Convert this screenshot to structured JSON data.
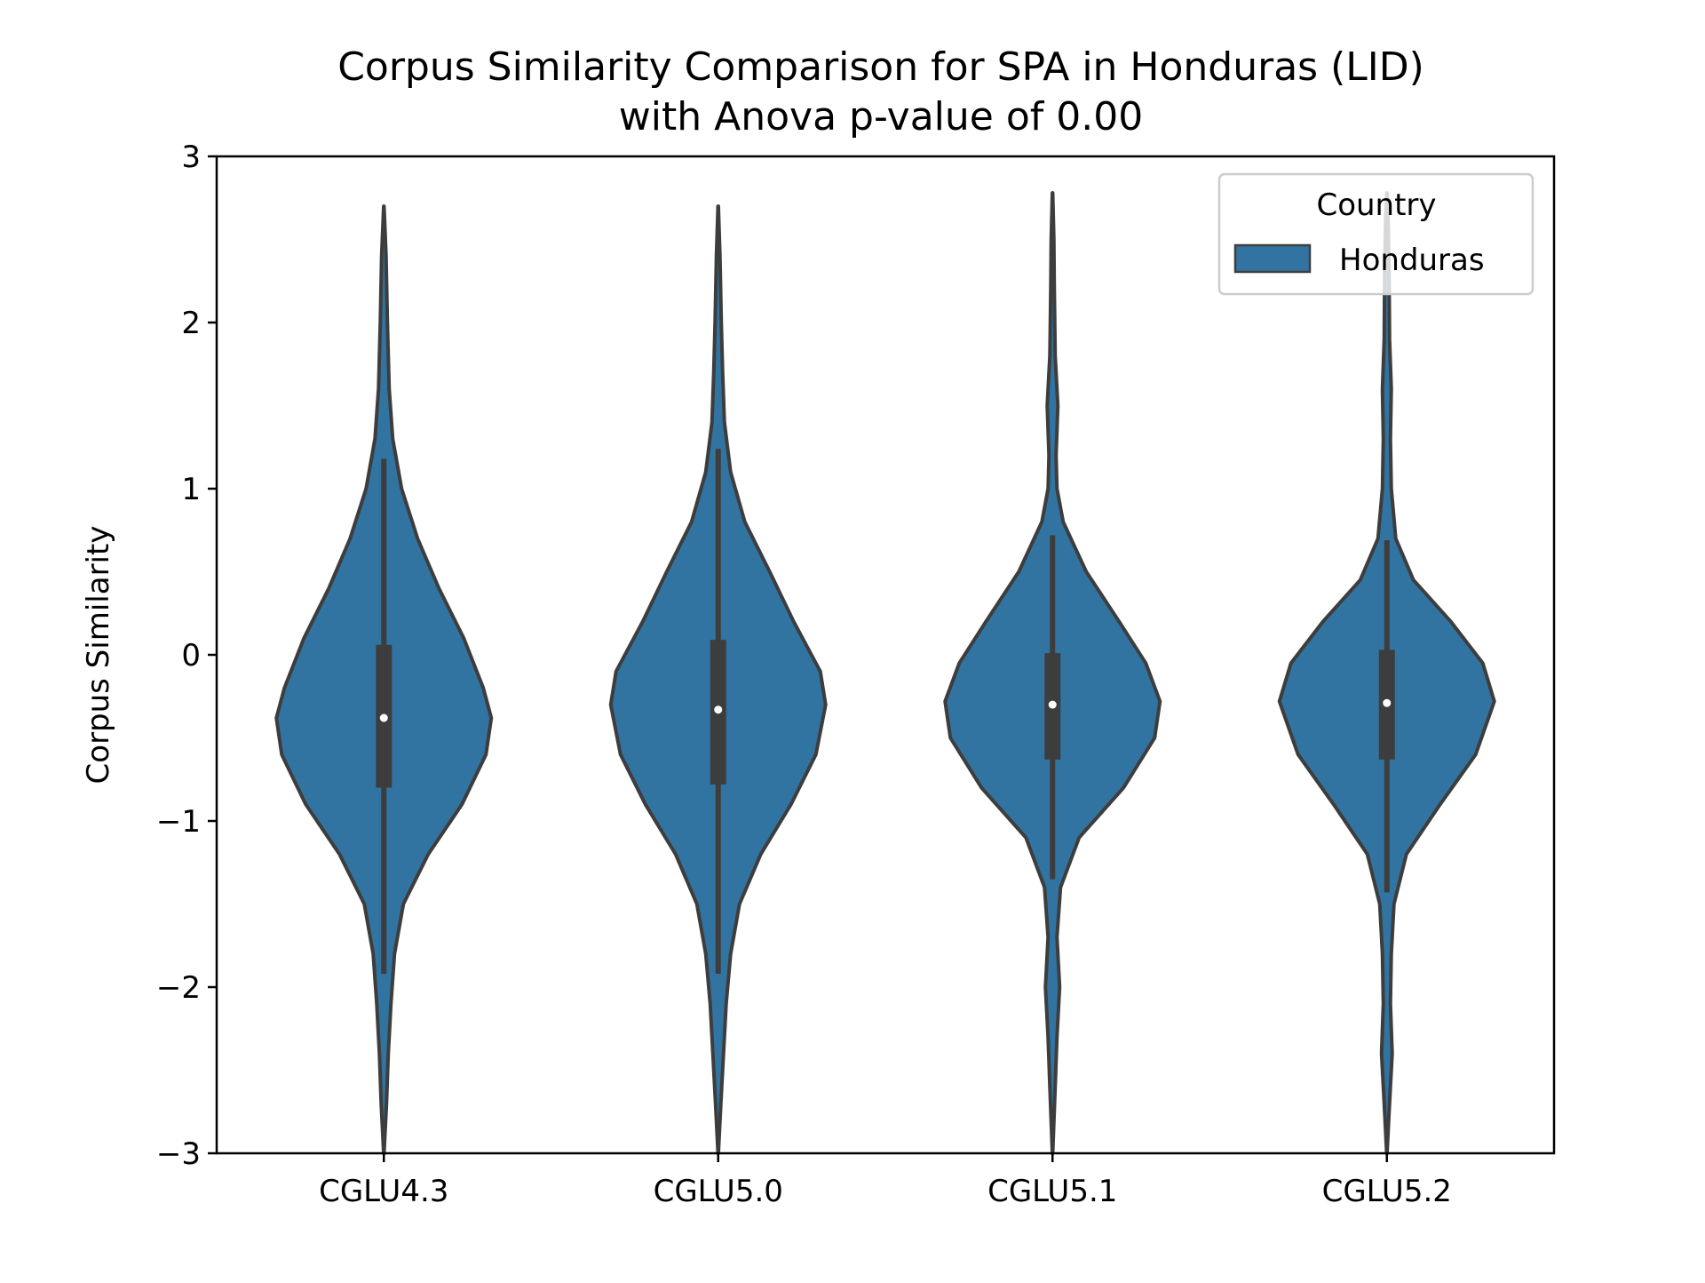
{
  "chart_data": {
    "type": "violin",
    "title_line1": "Corpus Similarity Comparison for SPA in Honduras (LID)",
    "title_line2": "with Anova p-value of 0.00",
    "xlabel": "",
    "ylabel": "Corpus Similarity",
    "ylim": [
      -3,
      3
    ],
    "yticks": [
      3,
      2,
      1,
      0,
      -1,
      -2,
      -3
    ],
    "ytick_labels": [
      "3",
      "2",
      "1",
      "0",
      "−1",
      "−2",
      "−3"
    ],
    "categories": [
      "CGLU4.3",
      "CGLU5.0",
      "CGLU5.1",
      "CGLU5.2"
    ],
    "grid": false,
    "legend": {
      "title": "Country",
      "placement": "top-right",
      "entries": [
        {
          "label": "Honduras",
          "color": "#3274a1"
        }
      ]
    },
    "colors": {
      "violin_fill": "#3274a1",
      "violin_edge": "#3d3d3d",
      "box": "#3d3d3d",
      "median": "#ffffff"
    },
    "series": [
      {
        "name": "Honduras",
        "stats": [
          {
            "category": "CGLU4.3",
            "median": -0.38,
            "q1": -0.8,
            "q3": 0.06,
            "whisker_low": -1.92,
            "whisker_high": 1.18,
            "min": -3.0,
            "max": 2.7
          },
          {
            "category": "CGLU5.0",
            "median": -0.33,
            "q1": -0.78,
            "q3": 0.09,
            "whisker_low": -1.92,
            "whisker_high": 1.24,
            "min": -3.0,
            "max": 2.7
          },
          {
            "category": "CGLU5.1",
            "median": -0.3,
            "q1": -0.63,
            "q3": 0.01,
            "whisker_low": -1.35,
            "whisker_high": 0.72,
            "min": -3.0,
            "max": 2.78
          },
          {
            "category": "CGLU5.2",
            "median": -0.29,
            "q1": -0.63,
            "q3": 0.03,
            "whisker_low": -1.43,
            "whisker_high": 0.69,
            "min": -3.0,
            "max": 2.78
          }
        ],
        "density_profiles": [
          [
            [
              -3.0,
              0.2
            ],
            [
              -2.7,
              3
            ],
            [
              -2.4,
              5
            ],
            [
              -2.1,
              8
            ],
            [
              -1.8,
              12
            ],
            [
              -1.5,
              22
            ],
            [
              -1.2,
              50
            ],
            [
              -0.9,
              88
            ],
            [
              -0.6,
              115
            ],
            [
              -0.38,
              121
            ],
            [
              -0.2,
              112
            ],
            [
              0.1,
              90
            ],
            [
              0.4,
              62
            ],
            [
              0.7,
              38
            ],
            [
              1.0,
              20
            ],
            [
              1.3,
              10
            ],
            [
              1.6,
              6
            ],
            [
              2.0,
              4
            ],
            [
              2.4,
              2.5
            ],
            [
              2.7,
              0.2
            ]
          ],
          [
            [
              -3.0,
              0.2
            ],
            [
              -2.7,
              3
            ],
            [
              -2.4,
              6
            ],
            [
              -2.1,
              9
            ],
            [
              -1.8,
              14
            ],
            [
              -1.5,
              24
            ],
            [
              -1.2,
              48
            ],
            [
              -0.9,
              82
            ],
            [
              -0.6,
              110
            ],
            [
              -0.3,
              121
            ],
            [
              -0.1,
              115
            ],
            [
              0.2,
              85
            ],
            [
              0.5,
              58
            ],
            [
              0.8,
              30
            ],
            [
              1.1,
              14
            ],
            [
              1.4,
              7
            ],
            [
              1.7,
              5
            ],
            [
              2.0,
              3.5
            ],
            [
              2.4,
              2
            ],
            [
              2.7,
              0.2
            ]
          ],
          [
            [
              -3.0,
              0.2
            ],
            [
              -2.6,
              3
            ],
            [
              -2.3,
              5
            ],
            [
              -2.0,
              8
            ],
            [
              -1.7,
              5
            ],
            [
              -1.4,
              9
            ],
            [
              -1.1,
              30
            ],
            [
              -0.8,
              80
            ],
            [
              -0.5,
              115
            ],
            [
              -0.28,
              121
            ],
            [
              -0.05,
              105
            ],
            [
              0.2,
              75
            ],
            [
              0.5,
              38
            ],
            [
              0.8,
              12
            ],
            [
              1.0,
              5
            ],
            [
              1.2,
              4
            ],
            [
              1.5,
              6
            ],
            [
              1.8,
              3
            ],
            [
              2.2,
              2
            ],
            [
              2.5,
              1.5
            ],
            [
              2.78,
              0.2
            ]
          ],
          [
            [
              -3.0,
              0.2
            ],
            [
              -2.7,
              3
            ],
            [
              -2.4,
              6
            ],
            [
              -2.1,
              4
            ],
            [
              -1.8,
              5
            ],
            [
              -1.5,
              8
            ],
            [
              -1.2,
              22
            ],
            [
              -0.9,
              60
            ],
            [
              -0.6,
              100
            ],
            [
              -0.28,
              121
            ],
            [
              -0.05,
              108
            ],
            [
              0.2,
              72
            ],
            [
              0.45,
              30
            ],
            [
              0.7,
              10
            ],
            [
              1.0,
              5
            ],
            [
              1.3,
              4
            ],
            [
              1.6,
              5
            ],
            [
              1.9,
              3
            ],
            [
              2.3,
              2.5
            ],
            [
              2.6,
              1.5
            ],
            [
              2.78,
              0.2
            ]
          ]
        ]
      }
    ]
  }
}
